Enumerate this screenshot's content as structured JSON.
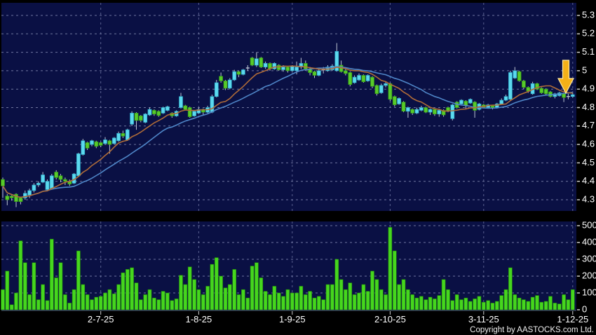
{
  "footer": {
    "copyright": "Copyright by AASTOCKS.com Ltd."
  },
  "colors": {
    "background": "#000000",
    "panel_bg": "#0a1044",
    "grid_h": "#8087b0",
    "grid_v": "#6f76a4",
    "axis_text": "#ffffff",
    "up_candle_fill": "#5cd9ee",
    "up_candle_edge": "#2aa7c6",
    "down_candle_fill": "#58cb2a",
    "down_candle_edge": "#2f9612",
    "wick": "#bcc4d4",
    "ma10_line": "#b06c38",
    "ma20_line": "#4f86c8",
    "volume_bar_fill": "#46d61e",
    "volume_bar_edge": "#1e8709",
    "arrow_fill": "#f3b018",
    "arrow_edge": "#ffe9a0"
  },
  "chart_data": {
    "type": "candlestick",
    "panels": [
      "price",
      "volume"
    ],
    "title": "",
    "x_labels": [
      "2-7-25",
      "1-8-25",
      "1-9-25",
      "2-10-25",
      "3-11-25",
      "1-12-25"
    ],
    "x_label_indices": [
      22,
      44,
      65,
      87,
      108,
      128
    ],
    "price_axis_ticks": [
      "5.3",
      "5.2",
      "5.1",
      "5",
      "4.9",
      "4.8",
      "4.7",
      "4.6",
      "4.5",
      "4.4",
      "4.3"
    ],
    "price_axis_values": [
      5.3,
      5.2,
      5.1,
      5.0,
      4.9,
      4.8,
      4.7,
      4.6,
      4.5,
      4.4,
      4.3
    ],
    "volume_axis_ticks": [
      "500",
      "400",
      "300",
      "200",
      "100",
      "0"
    ],
    "volume_axis_values": [
      500,
      400,
      300,
      200,
      100,
      0
    ],
    "price_range": [
      4.24,
      5.37
    ],
    "volume_range": [
      0,
      530
    ],
    "grid": "dashed",
    "legend": "none",
    "ma_periods": {
      "orange": 10,
      "blue": 20
    },
    "annotations": [
      {
        "type": "down-arrow",
        "index": 127,
        "price_tip": 4.93,
        "meaning": "sell-signal-marker"
      }
    ],
    "ohlc": [
      [
        4.41,
        4.42,
        4.31,
        4.375
      ],
      [
        4.32,
        4.33,
        4.27,
        4.3
      ],
      [
        4.32,
        4.325,
        4.295,
        4.31
      ],
      [
        4.33,
        4.335,
        4.26,
        4.29
      ],
      [
        4.31,
        4.315,
        4.275,
        4.29
      ],
      [
        4.31,
        4.35,
        4.3,
        4.335
      ],
      [
        4.325,
        4.36,
        4.31,
        4.35
      ],
      [
        4.35,
        4.39,
        4.34,
        4.38
      ],
      [
        4.38,
        4.4,
        4.37,
        4.39
      ],
      [
        4.395,
        4.45,
        4.39,
        4.435
      ],
      [
        4.355,
        4.41,
        4.35,
        4.4
      ],
      [
        4.36,
        4.44,
        4.355,
        4.43
      ],
      [
        4.45,
        4.46,
        4.41,
        4.42
      ],
      [
        4.43,
        4.44,
        4.395,
        4.41
      ],
      [
        4.41,
        4.42,
        4.38,
        4.4
      ],
      [
        4.4,
        4.41,
        4.375,
        4.385
      ],
      [
        4.39,
        4.445,
        4.385,
        4.44
      ],
      [
        4.43,
        4.555,
        4.425,
        4.55
      ],
      [
        4.545,
        4.63,
        4.54,
        4.62
      ],
      [
        4.61,
        4.615,
        4.57,
        4.58
      ],
      [
        4.6,
        4.625,
        4.59,
        4.62
      ],
      [
        4.615,
        4.62,
        4.58,
        4.59
      ],
      [
        4.61,
        4.615,
        4.585,
        4.595
      ],
      [
        4.605,
        4.64,
        4.6,
        4.625
      ],
      [
        4.62,
        4.625,
        4.55,
        4.6
      ],
      [
        4.605,
        4.64,
        4.6,
        4.635
      ],
      [
        4.62,
        4.67,
        4.615,
        4.66
      ],
      [
        4.66,
        4.675,
        4.635,
        4.645
      ],
      [
        4.625,
        4.685,
        4.62,
        4.68
      ],
      [
        4.71,
        4.78,
        4.7,
        4.77
      ],
      [
        4.77,
        4.775,
        4.68,
        4.73
      ],
      [
        4.755,
        4.76,
        4.72,
        4.73
      ],
      [
        4.72,
        4.77,
        4.715,
        4.765
      ],
      [
        4.76,
        4.8,
        4.755,
        4.79
      ],
      [
        4.785,
        4.79,
        4.755,
        4.765
      ],
      [
        4.78,
        4.785,
        4.75,
        4.757
      ],
      [
        4.77,
        4.805,
        4.765,
        4.8
      ],
      [
        4.785,
        4.81,
        4.78,
        4.805
      ],
      [
        4.77,
        4.775,
        4.745,
        4.755
      ],
      [
        4.755,
        4.785,
        4.75,
        4.78
      ],
      [
        4.8,
        4.88,
        4.795,
        4.86
      ],
      [
        4.81,
        4.815,
        4.785,
        4.79
      ],
      [
        4.8,
        4.805,
        4.745,
        4.75
      ],
      [
        4.755,
        4.785,
        4.75,
        4.78
      ],
      [
        4.77,
        4.8,
        4.765,
        4.79
      ],
      [
        4.79,
        4.795,
        4.76,
        4.775
      ],
      [
        4.775,
        4.81,
        4.77,
        4.8
      ],
      [
        4.775,
        4.87,
        4.77,
        4.86
      ],
      [
        4.86,
        4.95,
        4.855,
        4.935
      ],
      [
        4.97,
        4.99,
        4.935,
        4.945
      ],
      [
        4.945,
        4.95,
        4.895,
        4.905
      ],
      [
        4.905,
        4.96,
        4.9,
        4.95
      ],
      [
        4.95,
        5.005,
        4.945,
        4.995
      ],
      [
        4.995,
        5.0,
        4.965,
        4.98
      ],
      [
        4.98,
        5.01,
        4.975,
        5.005
      ],
      [
        5.01,
        5.03,
        5.0,
        5.015
      ],
      [
        5.07,
        5.075,
        5.025,
        5.03
      ],
      [
        5.03,
        5.1,
        5.02,
        5.065
      ],
      [
        5.07,
        5.075,
        5.015,
        5.02
      ],
      [
        5.02,
        5.05,
        5.01,
        5.04
      ],
      [
        5.04,
        5.045,
        5.0,
        5.01
      ],
      [
        5.01,
        5.045,
        5.005,
        5.04
      ],
      [
        5.03,
        5.035,
        5.0,
        5.005
      ],
      [
        5.005,
        5.03,
        4.995,
        5.02
      ],
      [
        5.02,
        5.025,
        4.99,
        5.0
      ],
      [
        5.0,
        5.03,
        4.995,
        5.025
      ],
      [
        5.0,
        5.05,
        4.98,
        5.02
      ],
      [
        5.02,
        5.07,
        5.01,
        5.04
      ],
      [
        5.04,
        5.055,
        5.0,
        5.01
      ],
      [
        5.01,
        5.02,
        4.975,
        4.99
      ],
      [
        4.995,
        5.0,
        4.96,
        4.975
      ],
      [
        4.975,
        5.01,
        4.97,
        5.0
      ],
      [
        5.0,
        5.02,
        4.985,
        5.005
      ],
      [
        5.0,
        5.03,
        4.995,
        5.02
      ],
      [
        5.005,
        5.035,
        5.0,
        5.025
      ],
      [
        5.0,
        5.15,
        4.995,
        5.105
      ],
      [
        5.03,
        5.055,
        4.99,
        4.995
      ],
      [
        5.0,
        5.01,
        4.975,
        4.985
      ],
      [
        4.99,
        4.995,
        4.915,
        4.925
      ],
      [
        4.935,
        4.975,
        4.93,
        4.965
      ],
      [
        4.95,
        4.985,
        4.945,
        4.975
      ],
      [
        4.975,
        4.98,
        4.935,
        4.94
      ],
      [
        4.945,
        4.98,
        4.94,
        4.975
      ],
      [
        4.965,
        4.97,
        4.905,
        4.915
      ],
      [
        4.92,
        4.925,
        4.865,
        4.875
      ],
      [
        4.88,
        4.93,
        4.875,
        4.92
      ],
      [
        4.92,
        4.94,
        4.91,
        4.93
      ],
      [
        4.93,
        4.935,
        4.835,
        4.845
      ],
      [
        4.86,
        4.865,
        4.805,
        4.815
      ],
      [
        4.82,
        4.855,
        4.815,
        4.85
      ],
      [
        4.83,
        4.835,
        4.775,
        4.78
      ],
      [
        4.78,
        4.805,
        4.745,
        4.8
      ],
      [
        4.79,
        4.795,
        4.76,
        4.77
      ],
      [
        4.77,
        4.8,
        4.765,
        4.79
      ],
      [
        4.785,
        4.81,
        4.78,
        4.8
      ],
      [
        4.8,
        4.805,
        4.77,
        4.775
      ],
      [
        4.775,
        4.795,
        4.76,
        4.79
      ],
      [
        4.79,
        4.795,
        4.755,
        4.765
      ],
      [
        4.765,
        4.79,
        4.75,
        4.785
      ],
      [
        4.785,
        4.79,
        4.75,
        4.76
      ],
      [
        4.8,
        4.805,
        4.775,
        4.78
      ],
      [
        4.74,
        4.82,
        4.73,
        4.815
      ],
      [
        4.83,
        4.835,
        4.795,
        4.8
      ],
      [
        4.82,
        4.845,
        4.815,
        4.84
      ],
      [
        4.835,
        4.84,
        4.79,
        4.81
      ],
      [
        4.825,
        4.85,
        4.82,
        4.845
      ],
      [
        4.83,
        4.835,
        4.745,
        4.785
      ],
      [
        4.79,
        4.825,
        4.785,
        4.82
      ],
      [
        4.815,
        4.82,
        4.795,
        4.8
      ],
      [
        4.8,
        4.82,
        4.795,
        4.815
      ],
      [
        4.81,
        4.815,
        4.79,
        4.8
      ],
      [
        4.8,
        4.825,
        4.795,
        4.82
      ],
      [
        4.82,
        4.85,
        4.815,
        4.84
      ],
      [
        4.84,
        4.87,
        4.835,
        4.86
      ],
      [
        4.845,
        5.0,
        4.84,
        4.99
      ],
      [
        4.96,
        5.02,
        4.955,
        5.0
      ],
      [
        4.995,
        5.0,
        4.94,
        4.945
      ],
      [
        4.945,
        4.95,
        4.9,
        4.91
      ],
      [
        4.91,
        4.915,
        4.88,
        4.89
      ],
      [
        4.875,
        4.94,
        4.87,
        4.93
      ],
      [
        4.93,
        4.935,
        4.895,
        4.9
      ],
      [
        4.905,
        4.91,
        4.875,
        4.88
      ],
      [
        4.9,
        4.905,
        4.87,
        4.875
      ],
      [
        4.885,
        4.89,
        4.855,
        4.86
      ],
      [
        4.86,
        4.88,
        4.85,
        4.875
      ],
      [
        4.865,
        4.885,
        4.86,
        4.88
      ],
      [
        4.875,
        4.88,
        4.83,
        4.855
      ],
      [
        4.855,
        4.875,
        4.845,
        4.86
      ],
      [
        4.86,
        4.88,
        4.855,
        4.87
      ]
    ],
    "volumes": [
      120,
      230,
      30,
      100,
      410,
      280,
      90,
      280,
      60,
      150,
      55,
      420,
      190,
      280,
      90,
      40,
      120,
      350,
      150,
      90,
      60,
      75,
      80,
      100,
      120,
      95,
      150,
      220,
      240,
      250,
      160,
      60,
      90,
      120,
      70,
      60,
      110,
      100,
      55,
      65,
      205,
      150,
      255,
      180,
      120,
      90,
      140,
      270,
      310,
      200,
      130,
      150,
      240,
      90,
      120,
      70,
      260,
      280,
      190,
      110,
      90,
      140,
      100,
      80,
      120,
      100,
      100,
      140,
      90,
      110,
      70,
      80,
      60,
      150,
      150,
      300,
      180,
      120,
      160,
      90,
      100,
      150,
      110,
      230,
      180,
      120,
      90,
      490,
      350,
      150,
      180,
      120,
      90,
      70,
      80,
      60,
      75,
      65,
      85,
      180,
      120,
      55,
      90,
      60,
      70,
      50,
      65,
      80,
      45,
      55,
      40,
      50,
      85,
      120,
      250,
      90,
      70,
      60,
      50,
      75,
      85,
      45,
      50,
      80,
      40,
      35,
      90,
      60,
      120
    ]
  }
}
